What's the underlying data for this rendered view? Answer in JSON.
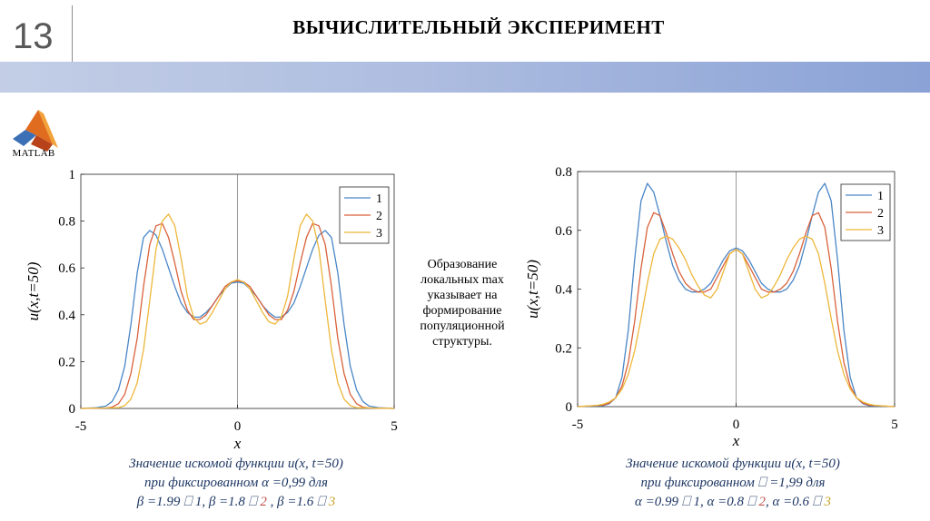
{
  "slide": {
    "number": "13",
    "title": "ВЫЧИСЛИТЕЛЬНЫЙ ЭКСПЕРИМЕНТ",
    "logo_text": "MATLAB",
    "banner_color": "#8aa2d6"
  },
  "note": {
    "lines": [
      "Образование",
      "локальных max",
      "указывает на",
      "формирование",
      "популяционной",
      "структуры."
    ]
  },
  "captions": {
    "left": {
      "line1": "Значение искомой функции u(x, t=50)",
      "line2": "при фиксированном α =0,99 для",
      "l3_a": "β =1.99 ⎕ ",
      "l3_n1": "1",
      "l3_b": ", β =1.8 ⎕ ",
      "l3_n2": "2",
      "l3_c": " , β =1.6 ⎕ ",
      "l3_n3": "3"
    },
    "right": {
      "line1": "Значение искомой функции u(x, t=50)",
      "line2": "при фиксированном ⎕ =1,99 для",
      "l3_a": "α =0.99 ⎕ ",
      "l3_n1": "1",
      "l3_b": ", α =0.8 ⎕ ",
      "l3_n2": "2",
      "l3_c": ", α =0.6 ⎕ ",
      "l3_n3": "3"
    }
  },
  "colors": {
    "series1": "#4a86c6",
    "series2": "#d9613b",
    "series3": "#edb73a"
  },
  "chart_data": [
    {
      "type": "line",
      "xlabel": "x",
      "ylabel": "u(x,t=50)",
      "xlim": [
        -5,
        5
      ],
      "ylim": [
        0,
        1
      ],
      "xticks": [
        "-5",
        "0",
        "5"
      ],
      "yticks": [
        "0",
        "0.2",
        "0.4",
        "0.6",
        "0.8",
        "1"
      ],
      "legend_position": "top-right",
      "series": [
        {
          "name": "1",
          "x": [
            -5,
            -4.5,
            -4.2,
            -4.0,
            -3.8,
            -3.6,
            -3.4,
            -3.2,
            -3.0,
            -2.8,
            -2.6,
            -2.4,
            -2.2,
            -2.0,
            -1.8,
            -1.6,
            -1.4,
            -1.2,
            -1.0,
            -0.8,
            -0.6,
            -0.4,
            -0.2,
            0,
            0.2,
            0.4,
            0.6,
            0.8,
            1.0,
            1.2,
            1.4,
            1.6,
            1.8,
            2.0,
            2.2,
            2.4,
            2.6,
            2.8,
            3.0,
            3.2,
            3.4,
            3.6,
            3.8,
            4.0,
            4.2,
            4.5,
            5
          ],
          "y": [
            0,
            0.003,
            0.01,
            0.03,
            0.08,
            0.18,
            0.36,
            0.58,
            0.73,
            0.76,
            0.74,
            0.68,
            0.6,
            0.52,
            0.45,
            0.41,
            0.39,
            0.39,
            0.41,
            0.44,
            0.48,
            0.51,
            0.535,
            0.54,
            0.535,
            0.51,
            0.48,
            0.44,
            0.41,
            0.39,
            0.39,
            0.41,
            0.45,
            0.52,
            0.6,
            0.68,
            0.74,
            0.76,
            0.73,
            0.58,
            0.36,
            0.18,
            0.08,
            0.03,
            0.01,
            0.003,
            0
          ]
        },
        {
          "name": "2",
          "x": [
            -5,
            -4.2,
            -4.0,
            -3.8,
            -3.6,
            -3.4,
            -3.2,
            -3.0,
            -2.8,
            -2.6,
            -2.4,
            -2.2,
            -2.0,
            -1.8,
            -1.6,
            -1.4,
            -1.2,
            -1.0,
            -0.8,
            -0.6,
            -0.4,
            -0.2,
            0,
            0.2,
            0.4,
            0.6,
            0.8,
            1.0,
            1.2,
            1.4,
            1.6,
            1.8,
            2.0,
            2.2,
            2.4,
            2.6,
            2.8,
            3.0,
            3.2,
            3.4,
            3.6,
            3.8,
            4.0,
            4.2,
            5
          ],
          "y": [
            0,
            0.002,
            0.006,
            0.02,
            0.06,
            0.15,
            0.3,
            0.52,
            0.7,
            0.78,
            0.79,
            0.73,
            0.62,
            0.5,
            0.42,
            0.38,
            0.38,
            0.4,
            0.44,
            0.48,
            0.52,
            0.54,
            0.545,
            0.54,
            0.52,
            0.48,
            0.44,
            0.4,
            0.38,
            0.38,
            0.42,
            0.5,
            0.62,
            0.73,
            0.79,
            0.78,
            0.7,
            0.52,
            0.3,
            0.15,
            0.06,
            0.02,
            0.006,
            0.002,
            0
          ]
        },
        {
          "name": "3",
          "x": [
            -5,
            -3.8,
            -3.6,
            -3.4,
            -3.2,
            -3.0,
            -2.8,
            -2.6,
            -2.4,
            -2.2,
            -2.0,
            -1.8,
            -1.6,
            -1.4,
            -1.2,
            -1.0,
            -0.8,
            -0.6,
            -0.4,
            -0.2,
            0,
            0.2,
            0.4,
            0.6,
            0.8,
            1.0,
            1.2,
            1.4,
            1.6,
            1.8,
            2.0,
            2.2,
            2.4,
            2.6,
            2.8,
            3.0,
            3.2,
            3.4,
            3.6,
            3.8,
            5
          ],
          "y": [
            0,
            0.003,
            0.012,
            0.04,
            0.11,
            0.25,
            0.46,
            0.68,
            0.8,
            0.83,
            0.78,
            0.64,
            0.48,
            0.39,
            0.36,
            0.37,
            0.41,
            0.46,
            0.51,
            0.54,
            0.55,
            0.54,
            0.51,
            0.46,
            0.41,
            0.37,
            0.36,
            0.39,
            0.48,
            0.64,
            0.78,
            0.83,
            0.8,
            0.68,
            0.46,
            0.25,
            0.11,
            0.04,
            0.012,
            0.003,
            0
          ]
        }
      ]
    },
    {
      "type": "line",
      "xlabel": "x",
      "ylabel": "u(x,t=50)",
      "xlim": [
        -5,
        5
      ],
      "ylim": [
        0,
        0.8
      ],
      "xticks": [
        "-5",
        "0",
        "5"
      ],
      "yticks": [
        "0",
        "0.2",
        "0.4",
        "0.6",
        "0.8"
      ],
      "legend_position": "top-right",
      "series": [
        {
          "name": "1",
          "x": [
            -5,
            -4.2,
            -4.0,
            -3.8,
            -3.6,
            -3.4,
            -3.2,
            -3.0,
            -2.8,
            -2.6,
            -2.4,
            -2.2,
            -2.0,
            -1.8,
            -1.6,
            -1.4,
            -1.2,
            -1.0,
            -0.8,
            -0.6,
            -0.4,
            -0.2,
            0,
            0.2,
            0.4,
            0.6,
            0.8,
            1.0,
            1.2,
            1.4,
            1.6,
            1.8,
            2.0,
            2.2,
            2.4,
            2.6,
            2.8,
            3.0,
            3.2,
            3.4,
            3.6,
            3.8,
            4.0,
            4.2,
            5
          ],
          "y": [
            0,
            0.003,
            0.01,
            0.03,
            0.1,
            0.26,
            0.5,
            0.7,
            0.76,
            0.73,
            0.65,
            0.56,
            0.48,
            0.43,
            0.4,
            0.39,
            0.39,
            0.4,
            0.42,
            0.46,
            0.5,
            0.53,
            0.54,
            0.53,
            0.5,
            0.46,
            0.42,
            0.4,
            0.39,
            0.39,
            0.4,
            0.43,
            0.48,
            0.56,
            0.65,
            0.73,
            0.76,
            0.7,
            0.5,
            0.26,
            0.1,
            0.03,
            0.01,
            0.003,
            0
          ]
        },
        {
          "name": "2",
          "x": [
            -5,
            -4.2,
            -4.0,
            -3.8,
            -3.6,
            -3.4,
            -3.2,
            -3.0,
            -2.8,
            -2.6,
            -2.4,
            -2.2,
            -2.0,
            -1.8,
            -1.6,
            -1.4,
            -1.2,
            -1.0,
            -0.8,
            -0.6,
            -0.4,
            -0.2,
            0,
            0.2,
            0.4,
            0.6,
            0.8,
            1.0,
            1.2,
            1.4,
            1.6,
            1.8,
            2.0,
            2.2,
            2.4,
            2.6,
            2.8,
            3.0,
            3.2,
            3.4,
            3.6,
            3.8,
            4.0,
            4.2,
            5
          ],
          "y": [
            0,
            0.005,
            0.012,
            0.03,
            0.07,
            0.15,
            0.29,
            0.47,
            0.61,
            0.66,
            0.65,
            0.59,
            0.52,
            0.46,
            0.42,
            0.4,
            0.39,
            0.39,
            0.4,
            0.44,
            0.48,
            0.52,
            0.535,
            0.52,
            0.48,
            0.44,
            0.4,
            0.39,
            0.39,
            0.4,
            0.42,
            0.46,
            0.52,
            0.59,
            0.65,
            0.66,
            0.61,
            0.47,
            0.29,
            0.15,
            0.07,
            0.03,
            0.012,
            0.005,
            0
          ]
        },
        {
          "name": "3",
          "x": [
            -5,
            -4.4,
            -4.2,
            -4.0,
            -3.8,
            -3.6,
            -3.4,
            -3.2,
            -3.0,
            -2.8,
            -2.6,
            -2.4,
            -2.2,
            -2.0,
            -1.8,
            -1.6,
            -1.4,
            -1.2,
            -1.0,
            -0.8,
            -0.6,
            -0.4,
            -0.2,
            0,
            0.2,
            0.4,
            0.6,
            0.8,
            1.0,
            1.2,
            1.4,
            1.6,
            1.8,
            2.0,
            2.2,
            2.4,
            2.6,
            2.8,
            3.0,
            3.2,
            3.4,
            3.6,
            3.8,
            4.0,
            4.2,
            4.4,
            5
          ],
          "y": [
            0,
            0.004,
            0.008,
            0.016,
            0.03,
            0.06,
            0.11,
            0.19,
            0.3,
            0.42,
            0.52,
            0.57,
            0.58,
            0.57,
            0.54,
            0.5,
            0.45,
            0.41,
            0.38,
            0.37,
            0.4,
            0.46,
            0.52,
            0.535,
            0.52,
            0.46,
            0.4,
            0.37,
            0.38,
            0.41,
            0.45,
            0.5,
            0.54,
            0.57,
            0.58,
            0.57,
            0.52,
            0.42,
            0.3,
            0.19,
            0.11,
            0.06,
            0.03,
            0.016,
            0.008,
            0.004,
            0
          ]
        }
      ]
    }
  ]
}
